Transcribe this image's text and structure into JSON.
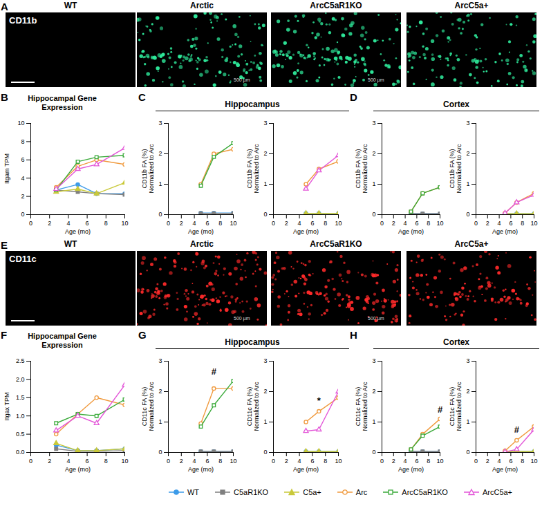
{
  "images": [
    {
      "panel": "A",
      "stain": "CD11b",
      "color": "#2ee89a",
      "columns": [
        "WT",
        "Arctic",
        "ArcC5aR1KO",
        "ArcC5a+"
      ],
      "scale_labels": [
        null,
        "500 µm",
        "500 µm",
        null
      ]
    },
    {
      "panel": "E",
      "stain": "CD11c",
      "color": "#ff2a2a",
      "columns": [
        "WT",
        "Arctic",
        "ArcC5aR1KO",
        "ArcC5a+"
      ],
      "scale_labels": [
        null,
        "500 µm",
        "500 µm",
        null
      ]
    }
  ],
  "chart_data": [
    {
      "panel": "B",
      "type": "line",
      "title": "Hippocampal Gene Expression",
      "legend": "bottom",
      "x_label": "Age (mo)",
      "y_label": "Itgam TPM",
      "x": [
        2.7,
        5,
        7,
        10
      ],
      "xlim": [
        0,
        10
      ],
      "xticks": [
        0,
        2,
        4,
        6,
        8,
        10
      ],
      "ylim": [
        0,
        10
      ],
      "yticks": [
        0,
        2,
        4,
        6,
        8,
        10
      ],
      "series": [
        {
          "name": "WT",
          "color": "#3d9be9",
          "marker": "circle",
          "values": [
            2.7,
            3.3,
            2.3,
            2.3
          ]
        },
        {
          "name": "C5aR1KO",
          "color": "#7f7f7f",
          "marker": "square",
          "values": [
            2.7,
            2.5,
            2.3,
            2.2
          ]
        },
        {
          "name": "C5a+",
          "color": "#c9c93a",
          "marker": "triangle",
          "values": [
            2.5,
            2.8,
            2.3,
            3.5
          ]
        },
        {
          "name": "Arc",
          "color": "#f09a3e",
          "marker": "circle-open",
          "values": [
            3.0,
            5.3,
            6.0,
            5.5
          ]
        },
        {
          "name": "ArcC5aR1KO",
          "color": "#3aaa3a",
          "marker": "square-open",
          "values": [
            2.7,
            5.8,
            6.3,
            6.5
          ]
        },
        {
          "name": "ArcC5a+",
          "color": "#e356d8",
          "marker": "triangle-open",
          "values": [
            2.8,
            5.0,
            5.5,
            7.3
          ]
        }
      ]
    },
    {
      "panel": "C",
      "type": "line",
      "title": "Hippocampus",
      "x_label": "Age (mo)",
      "y_label": "CD11b FA (%) Normalized to Arc",
      "x": [
        5,
        7,
        10
      ],
      "xlim": [
        0,
        10
      ],
      "xticks": [
        0,
        2,
        4,
        6,
        8,
        10
      ],
      "ylim": [
        0,
        3
      ],
      "yticks": [
        0,
        1,
        2,
        3
      ],
      "subplots": [
        {
          "series": [
            {
              "name": "WT",
              "color": "#3d9be9",
              "marker": "circle",
              "values": [
                0.05,
                0.05,
                0.05
              ]
            },
            {
              "name": "C5aR1KO",
              "color": "#7f7f7f",
              "marker": "square",
              "values": [
                0.04,
                0.04,
                0.04
              ]
            },
            {
              "name": "Arc",
              "color": "#f09a3e",
              "marker": "circle-open",
              "values": [
                1.0,
                2.0,
                2.15
              ]
            },
            {
              "name": "ArcC5aR1KO",
              "color": "#3aaa3a",
              "marker": "square-open",
              "values": [
                0.95,
                1.9,
                2.35
              ]
            }
          ],
          "annotations": []
        },
        {
          "series": [
            {
              "name": "WT",
              "color": "#3d9be9",
              "marker": "circle",
              "values": [
                0.04,
                0.04,
                0.04
              ]
            },
            {
              "name": "C5a+",
              "color": "#c9c93a",
              "marker": "triangle",
              "values": [
                0.04,
                0.04,
                0.04
              ]
            },
            {
              "name": "Arc",
              "color": "#f09a3e",
              "marker": "circle-open",
              "values": [
                1.0,
                1.5,
                1.75
              ]
            },
            {
              "name": "ArcC5a+",
              "color": "#e356d8",
              "marker": "triangle-open",
              "values": [
                0.85,
                1.45,
                1.95
              ]
            }
          ],
          "annotations": []
        }
      ]
    },
    {
      "panel": "D",
      "type": "line",
      "title": "Cortex",
      "x_label": "Age (mo)",
      "y_label": "CD11b FA (%) Normalized to Arc",
      "x": [
        5,
        7,
        10
      ],
      "xlim": [
        0,
        10
      ],
      "xticks": [
        0,
        2,
        4,
        6,
        8,
        10
      ],
      "ylim": [
        0,
        3
      ],
      "yticks": [
        0,
        1,
        2,
        3
      ],
      "subplots": [
        {
          "series": [
            {
              "name": "WT",
              "color": "#3d9be9",
              "marker": "circle",
              "values": [
                0.03,
                0.03,
                0.03
              ]
            },
            {
              "name": "C5aR1KO",
              "color": "#7f7f7f",
              "marker": "square",
              "values": [
                0.03,
                0.03,
                0.03
              ]
            },
            {
              "name": "Arc",
              "color": "#f09a3e",
              "marker": "circle-open",
              "values": [
                0.1,
                0.7,
                0.9
              ]
            },
            {
              "name": "ArcC5aR1KO",
              "color": "#3aaa3a",
              "marker": "square-open",
              "values": [
                0.1,
                0.7,
                0.9
              ]
            }
          ],
          "annotations": []
        },
        {
          "series": [
            {
              "name": "WT",
              "color": "#3d9be9",
              "marker": "circle",
              "values": [
                0.03,
                0.03,
                0.03
              ]
            },
            {
              "name": "C5a+",
              "color": "#c9c93a",
              "marker": "triangle",
              "values": [
                0.03,
                0.03,
                0.03
              ]
            },
            {
              "name": "Arc",
              "color": "#f09a3e",
              "marker": "circle-open",
              "values": [
                0.05,
                0.4,
                0.7
              ]
            },
            {
              "name": "ArcC5a+",
              "color": "#e356d8",
              "marker": "triangle-open",
              "values": [
                0.05,
                0.4,
                0.65
              ]
            }
          ],
          "annotations": []
        }
      ]
    },
    {
      "panel": "F",
      "type": "line",
      "title": "Hippocampal Gene Expression",
      "x_label": "Age (mo)",
      "y_label": "Itgax TPM",
      "x": [
        2.7,
        5,
        7,
        10
      ],
      "xlim": [
        0,
        10
      ],
      "xticks": [
        0,
        2,
        4,
        6,
        8,
        10
      ],
      "ylim": [
        0,
        2.5
      ],
      "yticks": [
        {
          "value": 0,
          "label": "0.0"
        },
        0.5,
        {
          "value": 1,
          "label": "1.0"
        },
        1.5,
        {
          "value": 2,
          "label": "2.0"
        },
        2.5
      ],
      "series": [
        {
          "name": "WT",
          "color": "#3d9be9",
          "marker": "circle",
          "values": [
            0.2,
            0.05,
            0.05,
            0.1
          ]
        },
        {
          "name": "C5aR1KO",
          "color": "#7f7f7f",
          "marker": "square",
          "values": [
            0.1,
            0.03,
            0.03,
            0.05
          ]
        },
        {
          "name": "C5a+",
          "color": "#c9c93a",
          "marker": "triangle",
          "values": [
            0.25,
            0.05,
            0.05,
            0.1
          ]
        },
        {
          "name": "Arc",
          "color": "#f09a3e",
          "marker": "circle-open",
          "values": [
            0.5,
            1.05,
            1.5,
            1.3
          ]
        },
        {
          "name": "ArcC5aR1KO",
          "color": "#3aaa3a",
          "marker": "square-open",
          "values": [
            0.8,
            1.05,
            1.0,
            1.45
          ]
        },
        {
          "name": "ArcC5a+",
          "color": "#e356d8",
          "marker": "triangle-open",
          "values": [
            0.6,
            1.0,
            0.8,
            1.85
          ]
        }
      ]
    },
    {
      "panel": "G",
      "type": "line",
      "title": "Hippocampus",
      "x_label": "Age (mo)",
      "y_label": "CD11c FA (%) Normalized to Arc",
      "x": [
        5,
        7,
        10
      ],
      "xlim": [
        0,
        10
      ],
      "xticks": [
        0,
        2,
        4,
        6,
        8,
        10
      ],
      "ylim": [
        0,
        3
      ],
      "yticks": [
        0,
        1,
        2,
        3
      ],
      "subplots": [
        {
          "series": [
            {
              "name": "WT",
              "color": "#3d9be9",
              "marker": "circle",
              "values": [
                0.03,
                0.03,
                0.03
              ]
            },
            {
              "name": "C5aR1KO",
              "color": "#7f7f7f",
              "marker": "square",
              "values": [
                0.03,
                0.03,
                0.03
              ]
            },
            {
              "name": "Arc",
              "color": "#f09a3e",
              "marker": "circle-open",
              "values": [
                0.95,
                2.1,
                2.1
              ]
            },
            {
              "name": "ArcC5aR1KO",
              "color": "#3aaa3a",
              "marker": "square-open",
              "values": [
                0.85,
                1.55,
                2.35
              ]
            }
          ],
          "annotations": [
            {
              "text": "#",
              "x": 7,
              "y": 2.65
            }
          ]
        },
        {
          "series": [
            {
              "name": "WT",
              "color": "#3d9be9",
              "marker": "circle",
              "values": [
                0.03,
                0.03,
                0.03
              ]
            },
            {
              "name": "C5a+",
              "color": "#c9c93a",
              "marker": "triangle",
              "values": [
                0.03,
                0.03,
                0.03
              ]
            },
            {
              "name": "Arc",
              "color": "#f09a3e",
              "marker": "circle-open",
              "values": [
                1.0,
                1.35,
                1.8
              ]
            },
            {
              "name": "ArcC5a+",
              "color": "#e356d8",
              "marker": "triangle-open",
              "values": [
                0.7,
                0.75,
                2.0
              ]
            }
          ],
          "annotations": [
            {
              "text": "*",
              "x": 7,
              "y": 1.7
            }
          ]
        }
      ]
    },
    {
      "panel": "H",
      "type": "line",
      "title": "Cortex",
      "x_label": "Age (mo)",
      "y_label": "CD11c FA (%) Normalized to Arc",
      "x": [
        5,
        7,
        10
      ],
      "xlim": [
        0,
        10
      ],
      "xticks": [
        0,
        2,
        4,
        6,
        8,
        10
      ],
      "ylim": [
        0,
        3
      ],
      "yticks": [
        0,
        1,
        2,
        3
      ],
      "subplots": [
        {
          "series": [
            {
              "name": "WT",
              "color": "#3d9be9",
              "marker": "circle",
              "values": [
                0.03,
                0.03,
                0.03
              ]
            },
            {
              "name": "C5aR1KO",
              "color": "#7f7f7f",
              "marker": "square",
              "values": [
                0.03,
                0.03,
                0.03
              ]
            },
            {
              "name": "Arc",
              "color": "#f09a3e",
              "marker": "circle-open",
              "values": [
                0.1,
                0.6,
                1.1
              ]
            },
            {
              "name": "ArcC5aR1KO",
              "color": "#3aaa3a",
              "marker": "square-open",
              "values": [
                0.1,
                0.55,
                0.85
              ]
            }
          ],
          "annotations": [
            {
              "text": "#",
              "x": 10,
              "y": 1.4
            }
          ]
        },
        {
          "series": [
            {
              "name": "WT",
              "color": "#3d9be9",
              "marker": "circle",
              "values": [
                0.03,
                0.03,
                0.03
              ]
            },
            {
              "name": "C5a+",
              "color": "#c9c93a",
              "marker": "triangle",
              "values": [
                0.03,
                0.03,
                0.03
              ]
            },
            {
              "name": "Arc",
              "color": "#f09a3e",
              "marker": "circle-open",
              "values": [
                0.05,
                0.4,
                0.85
              ]
            },
            {
              "name": "ArcC5a+",
              "color": "#e356d8",
              "marker": "triangle-open",
              "values": [
                0.02,
                0.1,
                0.75
              ]
            }
          ],
          "annotations": [
            {
              "text": "#",
              "x": 7,
              "y": 0.75
            }
          ]
        }
      ]
    }
  ]
}
